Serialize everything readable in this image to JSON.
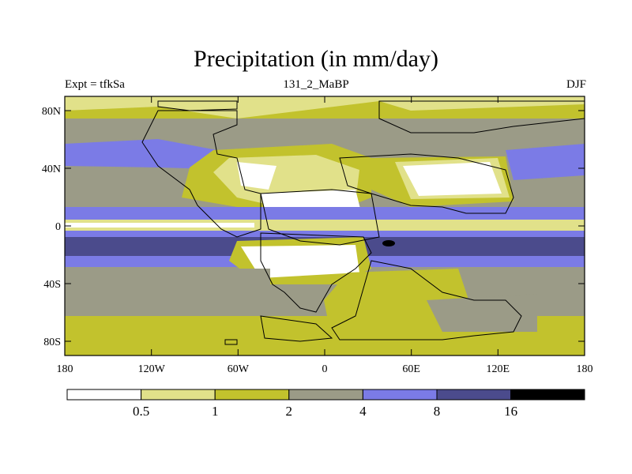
{
  "title": "Precipitation (in mm/day)",
  "subtitle_left": "Expt = tfkSa",
  "subtitle_center": "131_2_MaBP",
  "subtitle_right": "DJF",
  "y_axis_labels": [
    "80N",
    "40N",
    "0",
    "40S",
    "80S"
  ],
  "x_axis_labels": [
    "180",
    "120W",
    "60W",
    "0",
    "60E",
    "120E",
    "180"
  ],
  "colorbar": {
    "colors": [
      "#ffffff",
      "#e1e18a",
      "#c2c22d",
      "#9b9b87",
      "#7b7be6",
      "#4b4b8c",
      "#000000"
    ],
    "labels": [
      "0.5",
      "1",
      "2",
      "4",
      "8",
      "16"
    ]
  }
}
